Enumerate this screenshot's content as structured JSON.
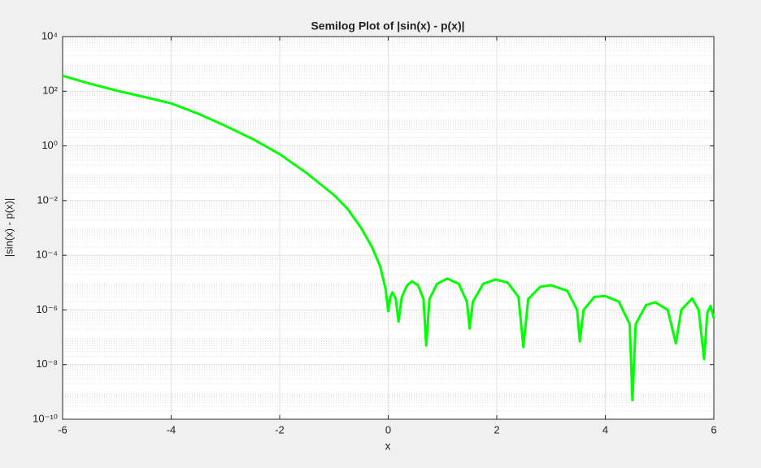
{
  "chart_data": {
    "type": "line",
    "title": "Semilog Plot of |sin(x) - p(x)|",
    "x_label": "x",
    "y_label": "|sin(x) - p(x)|",
    "log_y": true,
    "grid": true,
    "minor_grid": true,
    "xlim": [
      -6,
      6
    ],
    "xticks": [
      -6,
      -4,
      -2,
      0,
      2,
      4,
      6
    ],
    "ylim": [
      1e-10,
      10000
    ],
    "yticks": [
      {
        "value": 1e-10,
        "label": "10⁻¹⁰"
      },
      {
        "value": 1e-08,
        "label": "10⁻⁸"
      },
      {
        "value": 1e-06,
        "label": "10⁻⁶"
      },
      {
        "value": 0.0001,
        "label": "10⁻⁴"
      },
      {
        "value": 0.01,
        "label": "10⁻²"
      },
      {
        "value": 1,
        "label": "10⁰"
      },
      {
        "value": 100,
        "label": "10²"
      },
      {
        "value": 10000,
        "label": "10⁴"
      }
    ],
    "series": [
      {
        "color": "#00ff00",
        "x": [
          -6,
          -5.5,
          -5,
          -4.5,
          -4,
          -3.5,
          -3,
          -2.5,
          -2,
          -1.5,
          -1,
          -0.75,
          -0.5,
          -0.3,
          -0.15,
          -0.05,
          0,
          0.04,
          0.08,
          0.14,
          0.19,
          0.25,
          0.35,
          0.44,
          0.55,
          0.65,
          0.7,
          0.76,
          0.9,
          1.09,
          1.3,
          1.45,
          1.5,
          1.56,
          1.75,
          1.98,
          2.2,
          2.4,
          2.49,
          2.58,
          2.8,
          3.0,
          3.3,
          3.48,
          3.53,
          3.6,
          3.8,
          4.0,
          4.25,
          4.45,
          4.5,
          4.56,
          4.75,
          4.92,
          5.15,
          5.3,
          5.4,
          5.6,
          5.72,
          5.82,
          5.88,
          5.94,
          6
        ],
        "values": [
          370,
          190,
          105,
          62,
          36,
          15,
          5.4,
          1.8,
          0.5,
          0.1,
          0.016,
          0.005,
          0.001,
          0.0002,
          4e-05,
          6e-06,
          9e-07,
          3e-06,
          4.4e-06,
          2.5e-06,
          3.7e-07,
          3e-06,
          8e-06,
          1.1e-05,
          8e-06,
          2.5e-06,
          5e-08,
          2.5e-06,
          9e-06,
          1.4e-05,
          9e-06,
          2e-06,
          2.1e-07,
          2e-06,
          9e-06,
          1.3e-05,
          1e-05,
          3e-06,
          4.4e-08,
          2.5e-06,
          7e-06,
          8e-06,
          5e-06,
          1e-06,
          7e-08,
          1e-06,
          3e-06,
          3.2e-06,
          2e-06,
          3e-07,
          5e-10,
          3e-07,
          1.5e-06,
          1.9e-06,
          1e-06,
          6e-08,
          1e-06,
          2.6e-06,
          1e-06,
          1.6e-08,
          8e-07,
          1.4e-06,
          5e-07
        ]
      }
    ]
  }
}
